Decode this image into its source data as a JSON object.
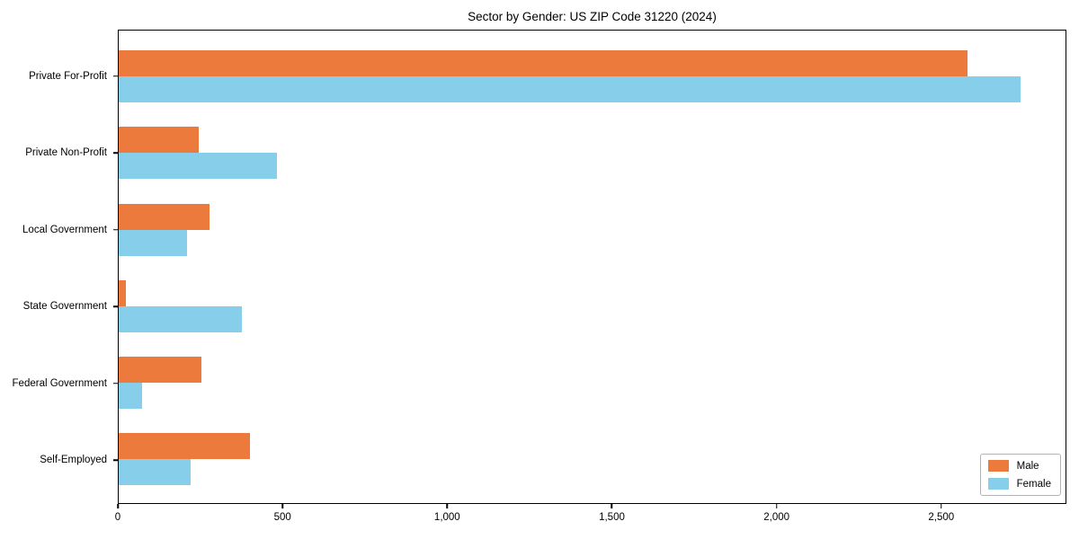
{
  "chart_data": {
    "type": "bar",
    "orientation": "horizontal",
    "title": "Sector by Gender: US ZIP Code 31220 (2024)",
    "categories": [
      "Private For-Profit",
      "Private Non-Profit",
      "Local Government",
      "State Government",
      "Federal Government",
      "Self-Employed"
    ],
    "series": [
      {
        "name": "Male",
        "color": "#EB7A3C",
        "values": [
          2583,
          244,
          275,
          21,
          251,
          398
        ]
      },
      {
        "name": "Female",
        "color": "#87CEEB",
        "values": [
          2742,
          481,
          207,
          375,
          70,
          220
        ]
      }
    ],
    "xlabel": "",
    "ylabel": "",
    "xlim": [
      0,
      2880
    ],
    "xticks": [
      0,
      500,
      1000,
      1500,
      2000,
      2500
    ],
    "xtick_labels": [
      "0",
      "500",
      "1,000",
      "1,500",
      "2,000",
      "2,500"
    ],
    "grid": false,
    "legend_position": "lower right",
    "frame": true
  },
  "colors": {
    "male": "#EB7A3C",
    "female": "#87CEEB",
    "spine": "#000000",
    "legend_border": "#b3b3b3",
    "background": "#ffffff"
  }
}
